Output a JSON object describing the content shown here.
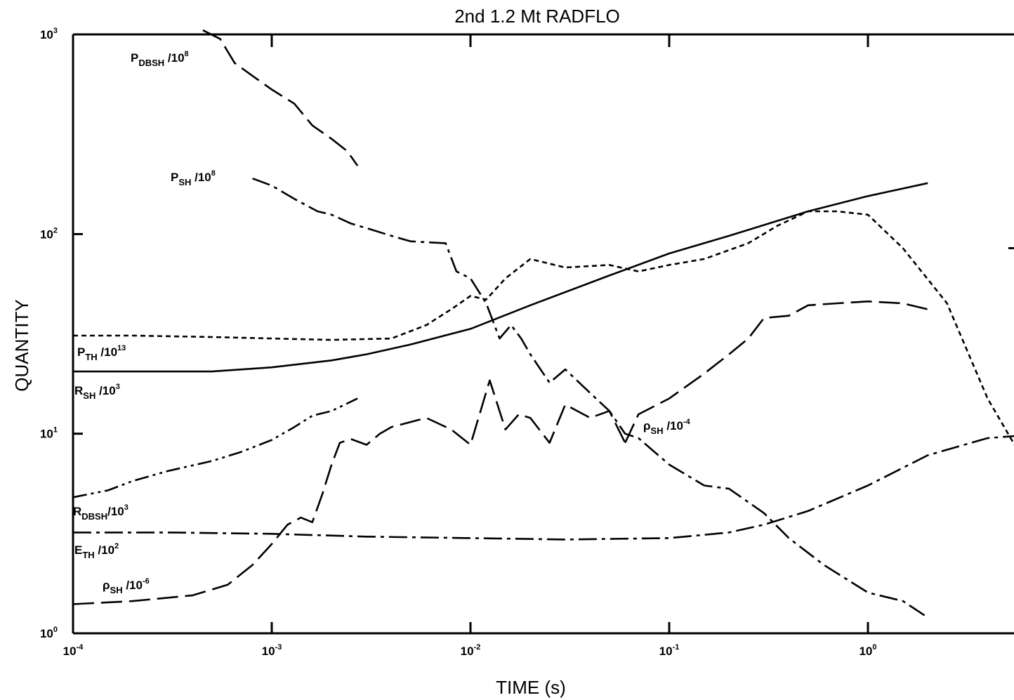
{
  "chart_data": {
    "type": "line",
    "title": "2nd 1.2 Mt RADFLO",
    "xlabel": "TIME (s)",
    "ylabel": "QUANTITY",
    "x_scale": "log",
    "y_scale": "log",
    "xlim": [
      0.0001,
      6
    ],
    "ylim": [
      1,
      1000
    ],
    "grid": false,
    "x_ticks": [
      {
        "value": 0.0001,
        "base": "10",
        "exp": "-4"
      },
      {
        "value": 0.001,
        "base": "10",
        "exp": "-3"
      },
      {
        "value": 0.01,
        "base": "10",
        "exp": "-2"
      },
      {
        "value": 0.1,
        "base": "10",
        "exp": "-1"
      },
      {
        "value": 1,
        "base": "10",
        "exp": "0"
      }
    ],
    "y_ticks": [
      {
        "value": 1,
        "base": "10",
        "exp": "0"
      },
      {
        "value": 10,
        "base": "10",
        "exp": "1"
      },
      {
        "value": 100,
        "base": "10",
        "exp": "2"
      },
      {
        "value": 1000,
        "base": "10",
        "exp": "3"
      }
    ],
    "series": [
      {
        "name": "P_DBSH/10^8",
        "label_main": "P",
        "label_sub": "DBSH",
        "label_tail": " /10",
        "label_sup": "8",
        "style": "long-dash",
        "x": [
          0.00045,
          0.00055,
          0.00065,
          0.0008,
          0.001,
          0.0013,
          0.0016,
          0.002,
          0.0024,
          0.0027
        ],
        "y": [
          1050,
          950,
          720,
          620,
          530,
          450,
          350,
          300,
          260,
          220
        ]
      },
      {
        "name": "P_SH/10^8",
        "label_main": "P",
        "label_sub": "SH",
        "label_tail": " /10",
        "label_sup": "8",
        "style": "dash-dot",
        "x": [
          0.0008,
          0.001,
          0.0013,
          0.0017,
          0.002,
          0.0025,
          0.0032,
          0.004,
          0.005,
          0.006,
          0.0075,
          0.0085,
          0.01,
          0.012,
          0.014,
          0.016,
          0.018,
          0.02,
          0.025,
          0.03,
          0.04,
          0.05,
          0.06,
          0.07,
          0.1,
          0.15,
          0.2,
          0.3,
          0.4,
          0.6,
          1.0,
          1.5,
          2.0
        ],
        "y": [
          190,
          175,
          150,
          130,
          125,
          113,
          105,
          98,
          92,
          91,
          90,
          65,
          60,
          45,
          30,
          35,
          30,
          25,
          18,
          21,
          16,
          13,
          10,
          9.5,
          7,
          5.5,
          5.3,
          4,
          3,
          2.2,
          1.6,
          1.45,
          1.2
        ]
      },
      {
        "name": "P_TH/10^13",
        "label_main": "P",
        "label_sub": "TH",
        "label_tail": " /10",
        "label_sup": "13",
        "style": "short-dash",
        "x": [
          0.0001,
          0.0002,
          0.0005,
          0.001,
          0.002,
          0.004,
          0.006,
          0.008,
          0.01,
          0.012,
          0.015,
          0.02,
          0.03,
          0.05,
          0.07,
          0.1,
          0.15,
          0.25,
          0.35,
          0.5,
          0.7,
          1.0,
          1.5,
          2.5,
          4,
          6
        ],
        "y": [
          31,
          31,
          30.5,
          30,
          29.5,
          30,
          35,
          42,
          49,
          47,
          60,
          75,
          68,
          70,
          65,
          70,
          75,
          90,
          110,
          130,
          130,
          125,
          85,
          45,
          15,
          7.5
        ]
      },
      {
        "name": "R_SH/10^3",
        "label_main": "R",
        "label_sub": "SH",
        "label_tail": " /10",
        "label_sup": "3",
        "style": "solid",
        "x": [
          0.0001,
          0.0005,
          0.001,
          0.002,
          0.003,
          0.005,
          0.01,
          0.02,
          0.05,
          0.1,
          0.2,
          0.5,
          1.0,
          2.0
        ],
        "y": [
          20.5,
          20.5,
          21.5,
          23.3,
          25,
          28,
          33.5,
          44,
          62,
          80,
          98,
          130,
          155,
          180
        ]
      },
      {
        "name": "R_DBSH/10^3",
        "label_main": "R",
        "label_sub": "DBSH",
        "label_tail": "/10",
        "label_sup": "3",
        "style": "dash-dot-dot",
        "x": [
          0.0001,
          0.00015,
          0.0002,
          0.0003,
          0.0005,
          0.0007,
          0.001,
          0.0013,
          0.0016,
          0.002,
          0.0027
        ],
        "y": [
          4.8,
          5.2,
          5.8,
          6.5,
          7.3,
          8.1,
          9.3,
          10.8,
          12.3,
          13,
          15
        ]
      },
      {
        "name": "E_TH/10^2",
        "label_main": "E",
        "label_sub": "TH",
        "label_tail": " /10",
        "label_sup": "2",
        "style": "dash-dot",
        "x": [
          0.0001,
          0.0003,
          0.001,
          0.003,
          0.01,
          0.03,
          0.1,
          0.2,
          0.3,
          0.5,
          1.0,
          2.0,
          4.0,
          6.0
        ],
        "y": [
          3.2,
          3.2,
          3.15,
          3.05,
          3.0,
          2.95,
          3.0,
          3.2,
          3.5,
          4.1,
          5.5,
          7.8,
          9.5,
          9.8
        ]
      },
      {
        "name": "ρ_SH/10^-6",
        "label_main": "ρ",
        "label_sub": "SH",
        "label_tail": " /10",
        "label_sup": "-6",
        "style": "long-dash",
        "x": [
          0.0001,
          0.0002,
          0.0004,
          0.0006,
          0.0008,
          0.001,
          0.0012,
          0.0014,
          0.0016,
          0.0018,
          0.002,
          0.0022,
          0.0025,
          0.003,
          0.0035,
          0.004,
          0.006,
          0.008,
          0.01,
          0.0125,
          0.015,
          0.0175,
          0.02,
          0.025,
          0.03,
          0.04,
          0.05,
          0.06
        ],
        "y": [
          1.4,
          1.45,
          1.55,
          1.75,
          2.2,
          2.8,
          3.5,
          3.8,
          3.6,
          5.0,
          7.0,
          9.0,
          9.4,
          8.8,
          10.0,
          10.8,
          12.0,
          10.5,
          8.8,
          18.5,
          10.5,
          12.5,
          12.0,
          9.0,
          14.0,
          12.0,
          13.0,
          9.0
        ]
      },
      {
        "name": "ρ_SH/10^-4",
        "label_main": "ρ",
        "label_sub": "SH",
        "label_tail": " /10",
        "label_sup": "-4",
        "style": "long-dash",
        "x": [
          0.06,
          0.07,
          0.1,
          0.15,
          0.2,
          0.25,
          0.3,
          0.4,
          0.5,
          0.7,
          1.0,
          1.5,
          2.0
        ],
        "y": [
          9.0,
          12.5,
          15.0,
          20.0,
          25.0,
          30.0,
          38.0,
          39.0,
          44.0,
          45.0,
          46.0,
          45.0,
          42.0
        ]
      }
    ]
  }
}
